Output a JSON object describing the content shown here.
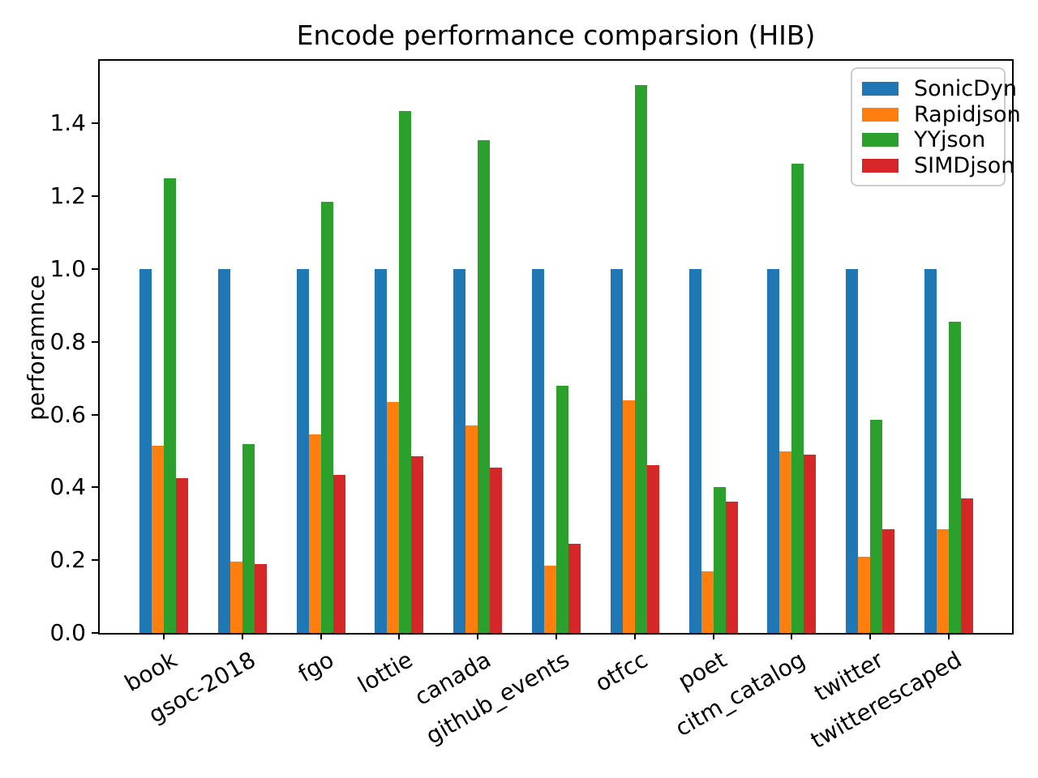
{
  "chart_data": {
    "type": "bar",
    "title": "Encode performance comparsion (HIB)",
    "ylabel": "perforamnce",
    "xlabel": "",
    "categories": [
      "book",
      "gsoc-2018",
      "fgo",
      "lottie",
      "canada",
      "github_events",
      "otfcc",
      "poet",
      "citm_catalog",
      "twitter",
      "twitterescaped"
    ],
    "series": [
      {
        "name": "SonicDyn",
        "color": "#1f77b4",
        "values": [
          1.0,
          1.0,
          1.0,
          1.0,
          1.0,
          1.0,
          1.0,
          1.0,
          1.0,
          1.0,
          1.0
        ]
      },
      {
        "name": "Rapidjson",
        "color": "#ff7f0e",
        "values": [
          0.515,
          0.195,
          0.545,
          0.635,
          0.57,
          0.185,
          0.64,
          0.17,
          0.5,
          0.21,
          0.285
        ]
      },
      {
        "name": "YYjson",
        "color": "#2ca02c",
        "values": [
          1.25,
          0.52,
          1.185,
          1.435,
          1.355,
          0.68,
          1.505,
          0.4,
          1.29,
          0.585,
          0.855
        ]
      },
      {
        "name": "SIMDjson",
        "color": "#d62728",
        "values": [
          0.425,
          0.19,
          0.435,
          0.485,
          0.455,
          0.245,
          0.46,
          0.36,
          0.49,
          0.285,
          0.37
        ]
      }
    ],
    "yticks": [
      "0.0",
      "0.2",
      "0.4",
      "0.6",
      "0.8",
      "1.0",
      "1.2",
      "1.4"
    ],
    "ylim": [
      0,
      1.5724
    ],
    "xtick_rotation_deg": 30,
    "grid": false,
    "legend": {
      "position": "upper right",
      "entries": [
        "SonicDyn",
        "Rapidjson",
        "YYjson",
        "SIMDjson"
      ]
    }
  }
}
